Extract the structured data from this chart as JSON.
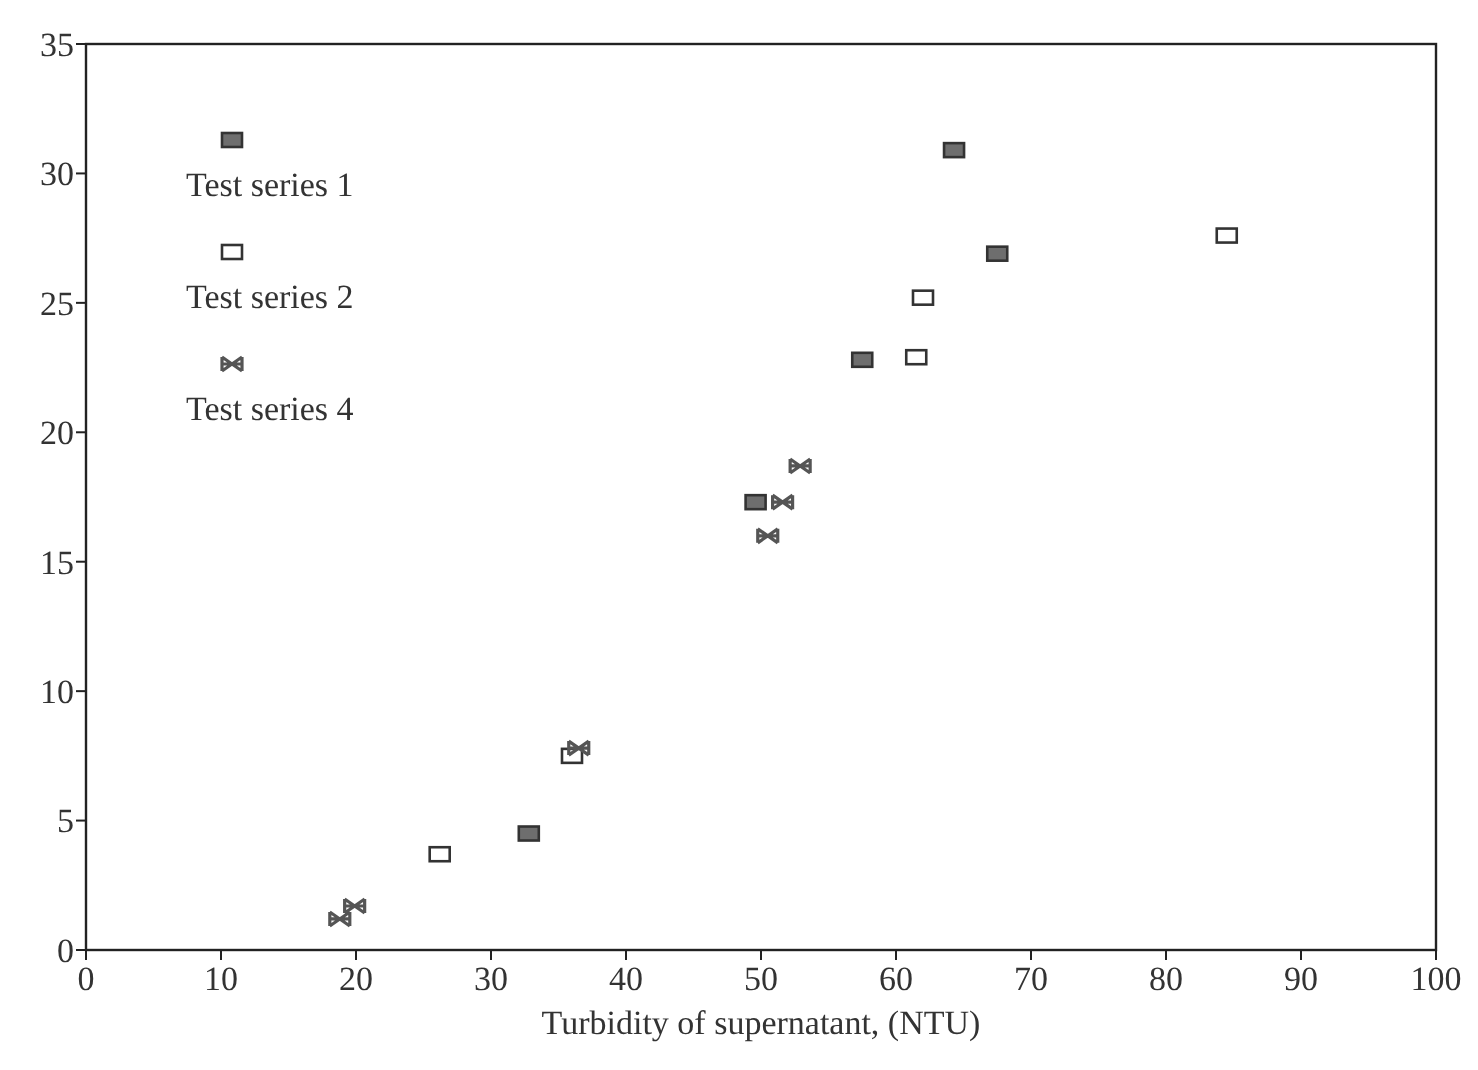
{
  "chart_data": {
    "type": "scatter",
    "xlabel": "Turbidity of supernatant, (NTU)",
    "xlim": [
      0,
      100
    ],
    "xticks": [
      0,
      10,
      20,
      30,
      40,
      50,
      60,
      70,
      80,
      90,
      100
    ],
    "ylim": [
      0,
      35
    ],
    "yticks": [
      0,
      5,
      10,
      15,
      20,
      25,
      30,
      35
    ],
    "grid": false,
    "legend": "top left",
    "series": [
      {
        "name": "Test series 1",
        "color": "#6e6e6e",
        "marker": "square",
        "x": [
          32.8,
          49.6,
          57.5,
          64.3,
          67.5
        ],
        "values": [
          4.5,
          17.3,
          22.8,
          30.9,
          26.9
        ]
      },
      {
        "name": "Test series 2",
        "color": "#ffffff",
        "marker": "square",
        "x": [
          26.2,
          36.0,
          61.5,
          62.0,
          84.5
        ],
        "values": [
          3.7,
          7.5,
          22.9,
          25.2,
          27.6
        ]
      },
      {
        "name": "Test series 4",
        "color": "#555555",
        "marker": "cross",
        "x": [
          18.8,
          19.9,
          36.5,
          50.5,
          51.6,
          52.9
        ],
        "values": [
          1.2,
          1.7,
          7.8,
          16.0,
          17.3,
          18.7
        ]
      }
    ]
  }
}
